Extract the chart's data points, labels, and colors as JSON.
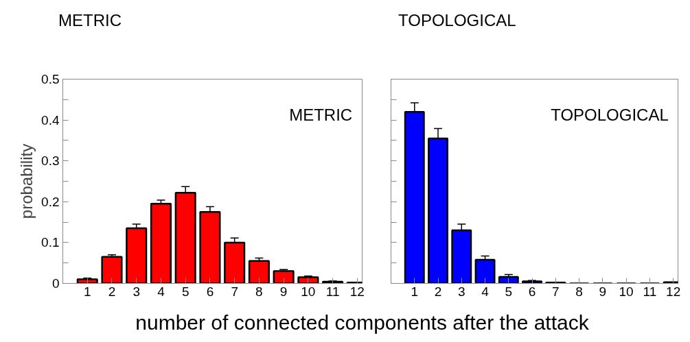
{
  "chart_data": [
    {
      "type": "bar",
      "title": "METRIC",
      "ylabel": "probability",
      "xlabel": "number of connected components after the attack",
      "annotations": [
        "METRIC"
      ],
      "x": [
        1,
        2,
        3,
        4,
        5,
        6,
        7,
        8,
        9,
        10,
        11,
        12
      ],
      "color": "#ff0000",
      "values": [
        0.01,
        0.065,
        0.135,
        0.195,
        0.222,
        0.175,
        0.1,
        0.055,
        0.03,
        0.015,
        0.004,
        0.002
      ],
      "errors": [
        0.003,
        0.005,
        0.01,
        0.009,
        0.015,
        0.013,
        0.011,
        0.007,
        0.004,
        0.003,
        0.002,
        null
      ],
      "xlim": [
        0,
        12.2
      ],
      "xticks": [
        1,
        2,
        3,
        4,
        5,
        6,
        7,
        8,
        9,
        10,
        11,
        12
      ],
      "ylim": [
        0,
        0.5
      ],
      "yticks": [
        0,
        {
          "value": 0.05,
          "label": null
        },
        0.1,
        {
          "value": 0.15,
          "label": null
        },
        0.2,
        {
          "value": 0.25,
          "label": null
        },
        0.3,
        {
          "value": 0.35,
          "label": null
        },
        0.4,
        {
          "value": 0.45,
          "label": null
        },
        0.5
      ],
      "grid": false
    },
    {
      "type": "bar",
      "title": "TOPOLOGICAL",
      "annotations": [
        "TOPOLOGICAL"
      ],
      "x": [
        1,
        2,
        3,
        4,
        5,
        6,
        7,
        8,
        9,
        10,
        11,
        12
      ],
      "color": "#0000ff",
      "values": [
        0.42,
        0.355,
        0.13,
        0.058,
        0.016,
        0.005,
        0.002,
        0,
        0,
        0,
        0,
        0.003
      ],
      "errors": [
        0.022,
        0.024,
        0.015,
        0.009,
        0.006,
        0.002,
        null,
        null,
        null,
        null,
        null,
        null
      ],
      "xlim": [
        0,
        12.2
      ],
      "xticks": [
        1,
        2,
        3,
        4,
        5,
        6,
        7,
        8,
        9,
        10,
        11,
        12
      ],
      "ylim": [
        0,
        0.5
      ],
      "yticks": [
        0,
        {
          "value": 0.05,
          "label": null
        },
        0.1,
        {
          "value": 0.15,
          "label": null
        },
        0.2,
        {
          "value": 0.25,
          "label": null
        },
        0.3,
        {
          "value": 0.35,
          "label": null
        },
        0.4,
        {
          "value": 0.45,
          "label": null
        },
        0.5
      ],
      "grid": false,
      "tick_labels": "x"
    }
  ]
}
